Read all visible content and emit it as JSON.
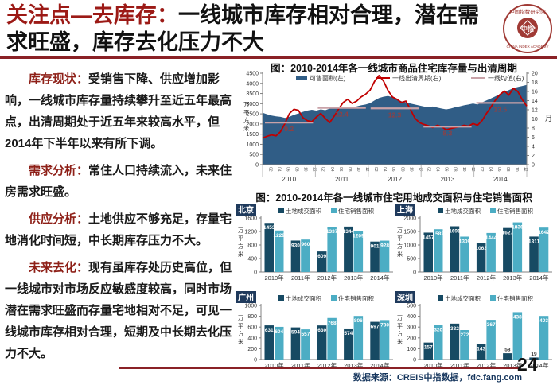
{
  "header": {
    "title_highlight": "关注点—去库存：",
    "title_rest": "一线城市库存相对合理，潜在需求旺盛，库存去化压力不大"
  },
  "logo": {
    "org_cn": "中国指数研究院",
    "org_en": "CHINA INDEX ACADEMY",
    "center": "中指"
  },
  "analysis": {
    "separator": "：",
    "paragraphs": [
      {
        "head": "库存现状",
        "body": "受销售下降、供应增加影响，一线城市库存量持续攀升至近五年最高点，出清周期处于近五年来较高水平，但2014年下半年以来有所下调。"
      },
      {
        "head": "需求分析",
        "body": "常住人口持续流入，未来住房需求旺盛。"
      },
      {
        "head": "供应分析",
        "body": "土地供应不够充足，存量宅地消化时间短，中长期库存压力不大。"
      },
      {
        "head": "未来去化",
        "body": "现有虽库存处历史高位，但一线城市对市场反应敏感度较高，同时市场潜在需求旺盛而存量宅地相对不足，可见一线城市库存相对合理，短期及中长期去化压力不大。"
      }
    ]
  },
  "footer": {
    "source": "数据来源：CREIS中指数据，fdc.fang.com",
    "page_number": "24"
  },
  "chart_data": [
    {
      "id": "inventory-clearing",
      "type": "area",
      "title": "图：2010-2014年各一线城市商品住宅库存量与出清周期",
      "unit_left": "万平方米",
      "unit_right": "月",
      "left_axis": {
        "min": 0,
        "max": 4500,
        "step": 500
      },
      "right_axis": {
        "min": 0,
        "max": 20,
        "step": 2
      },
      "years": [
        "2010",
        "2011",
        "2012",
        "2013",
        "2014"
      ],
      "legend": [
        "可售面积(左)",
        "一线出清周期(右)",
        "一线均值(右)"
      ],
      "series": [
        {
          "name": "可售面积(左)",
          "type": "area",
          "axis": "left",
          "values": [
            2550,
            2480,
            2420,
            2380,
            2350,
            2300,
            2360,
            2450,
            2520,
            2600,
            2660,
            2700,
            2660,
            2720,
            2680,
            2760,
            2820,
            2780,
            2820,
            2780,
            2830,
            2870,
            2920,
            2960,
            3020,
            3160,
            3280,
            3340,
            3380,
            3320,
            3220,
            3120,
            3060,
            3010,
            2960,
            2910,
            2860,
            2820,
            2860,
            2810,
            2760,
            2720,
            2760,
            2820,
            2870,
            2920,
            2960,
            3010,
            2960,
            3060,
            3160,
            3260,
            3360,
            3470,
            3570,
            3670,
            3760,
            3820,
            3870,
            3920
          ]
        },
        {
          "name": "一线出清周期(右)",
          "type": "line",
          "axis": "right",
          "values": [
            5.8,
            6.2,
            6.5,
            6.3,
            7.2,
            9.0,
            11.2,
            12.1,
            11.9,
            10.3,
            9.6,
            9.4,
            10.4,
            11.2,
            10.1,
            9.2,
            10.6,
            12.2,
            13.6,
            14.3,
            13.4,
            13.9,
            14.8,
            15.4,
            16.3,
            18.2,
            19.5,
            18.3,
            16.2,
            14.8,
            14.3,
            13.6,
            13.9,
            12.1,
            10.2,
            9.2,
            8.8,
            8.5,
            8.1,
            8.6,
            8.3,
            7.6,
            7.9,
            8.1,
            8.3,
            8.6,
            8.4,
            9.0,
            8.6,
            9.6,
            11.2,
            12.6,
            14.1,
            15.3,
            16.1,
            15.2,
            16.7,
            16.0,
            14.2,
            12.8
          ]
        },
        {
          "name": "一线均值(右)",
          "type": "avg-segments",
          "axis": "right",
          "segments": [
            {
              "year": "2010",
              "value": 9.2
            },
            {
              "year": "2011",
              "value": 12.4
            },
            {
              "year": "2012",
              "value": 12.3
            },
            {
              "year": "2013",
              "value": 8.3
            },
            {
              "year": "2014",
              "value": 13.5
            }
          ]
        }
      ],
      "colors": {
        "area": "#305d86",
        "line": "#c00000",
        "avg": "#c9a2a8",
        "avg_label": "#8e4044"
      }
    },
    {
      "id": "land-vs-sales",
      "type": "bar",
      "title": "图：2010-2014年各一线城市住宅用地成交面积与住宅销售面积",
      "unit": "万平方米",
      "categories": [
        "2010年",
        "2011年",
        "2012年",
        "2013年",
        "2014年"
      ],
      "series_names": [
        "土地成交面积",
        "住宅销售面积"
      ],
      "colors": {
        "land": "#174a63",
        "sales": "#4cadc4",
        "badge": "#1f3a5c"
      },
      "cities": [
        {
          "name": "北京",
          "ymax": 1600,
          "ystep": 400,
          "land": [
            1453,
            930,
            609,
            1344,
            901
          ],
          "sales": [
            1229,
            960,
            1337,
            1209,
            928
          ]
        },
        {
          "name": "上海",
          "ymax": 2000,
          "ystep": 500,
          "land": [
            1457,
            1691,
            1063,
            1627,
            1311
          ],
          "sales": [
            1582,
            1309,
            1444,
            1836,
            1642
          ]
        },
        {
          "name": "广州",
          "ymax": 1000,
          "ystep": 200,
          "land": [
            631,
            594,
            630,
            574,
            697
          ],
          "sales": [
            604,
            557,
            768,
            806,
            730
          ]
        },
        {
          "name": "深圳",
          "ymax": 500,
          "ystep": 100,
          "land": [
            157,
            332,
            143,
            58,
            19
          ],
          "sales": [
            320,
            272,
            367,
            438,
            403
          ]
        }
      ]
    }
  ]
}
